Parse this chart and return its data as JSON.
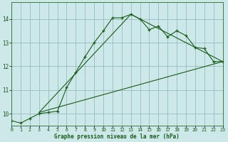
{
  "title": "Graphe pression niveau de la mer (hPa)",
  "background_color": "#cce8e8",
  "grid_color": "#99bbbb",
  "line_color": "#1a5c1a",
  "xlim": [
    0,
    23
  ],
  "ylim": [
    1009.5,
    1014.7
  ],
  "yticks": [
    1010,
    1011,
    1012,
    1013,
    1014
  ],
  "ytick_labels": [
    "10",
    "11",
    "12",
    "13",
    "14"
  ],
  "xticks": [
    0,
    1,
    2,
    3,
    4,
    5,
    6,
    7,
    8,
    9,
    10,
    11,
    12,
    13,
    14,
    15,
    16,
    17,
    18,
    19,
    20,
    21,
    22,
    23
  ],
  "series_main": {
    "x": [
      0,
      1,
      2,
      3,
      4,
      5,
      6,
      7,
      8,
      9,
      10,
      11,
      12,
      13,
      14,
      15,
      16,
      17,
      18,
      19,
      20,
      21,
      22,
      23
    ],
    "y": [
      1009.7,
      1009.6,
      1009.8,
      1010.0,
      1010.05,
      1010.1,
      1011.1,
      1011.75,
      1012.4,
      1013.0,
      1013.5,
      1014.05,
      1014.05,
      1014.2,
      1014.0,
      1013.55,
      1013.7,
      1013.25,
      1013.5,
      1013.3,
      1012.8,
      1012.75,
      1012.2,
      1012.2
    ]
  },
  "line_straight1": {
    "x": [
      3,
      23
    ],
    "y": [
      1010.05,
      1012.2
    ]
  },
  "line_straight2": {
    "x": [
      3,
      13,
      23
    ],
    "y": [
      1010.05,
      1014.2,
      1012.2
    ]
  }
}
